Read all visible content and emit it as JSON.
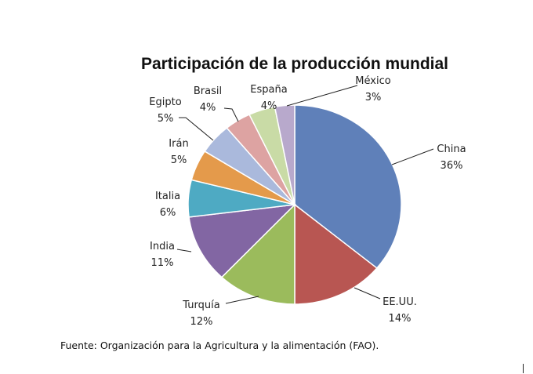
{
  "chart_data": {
    "type": "pie",
    "title": "Participación de la producción mundial",
    "start": "top",
    "direction": "clockwise",
    "slices": [
      {
        "label": "China",
        "value": 36,
        "display": "36%",
        "color": "#5f80b9"
      },
      {
        "label": "EE.UU.",
        "value": 14,
        "display": "14%",
        "color": "#b85652"
      },
      {
        "label": "Turquía",
        "value": 12,
        "display": "12%",
        "color": "#9bbb5c"
      },
      {
        "label": "India",
        "value": 11,
        "display": "11%",
        "color": "#8266a3"
      },
      {
        "label": "Italia",
        "value": 6,
        "display": "6%",
        "color": "#4eaac3"
      },
      {
        "label": "Irán",
        "value": 5,
        "display": "5%",
        "color": "#e49a4b"
      },
      {
        "label": "Egipto",
        "value": 5,
        "display": "5%",
        "color": "#aab9dc"
      },
      {
        "label": "Brasil",
        "value": 4,
        "display": "4%",
        "color": "#dda3a2"
      },
      {
        "label": "España",
        "value": 4,
        "display": "4%",
        "color": "#c9dba6"
      },
      {
        "label": "México",
        "value": 3,
        "display": "3%",
        "color": "#b8a9cc"
      }
    ]
  },
  "source": "Fuente: Organización para la Agricultura y la alimentación (FAO)."
}
